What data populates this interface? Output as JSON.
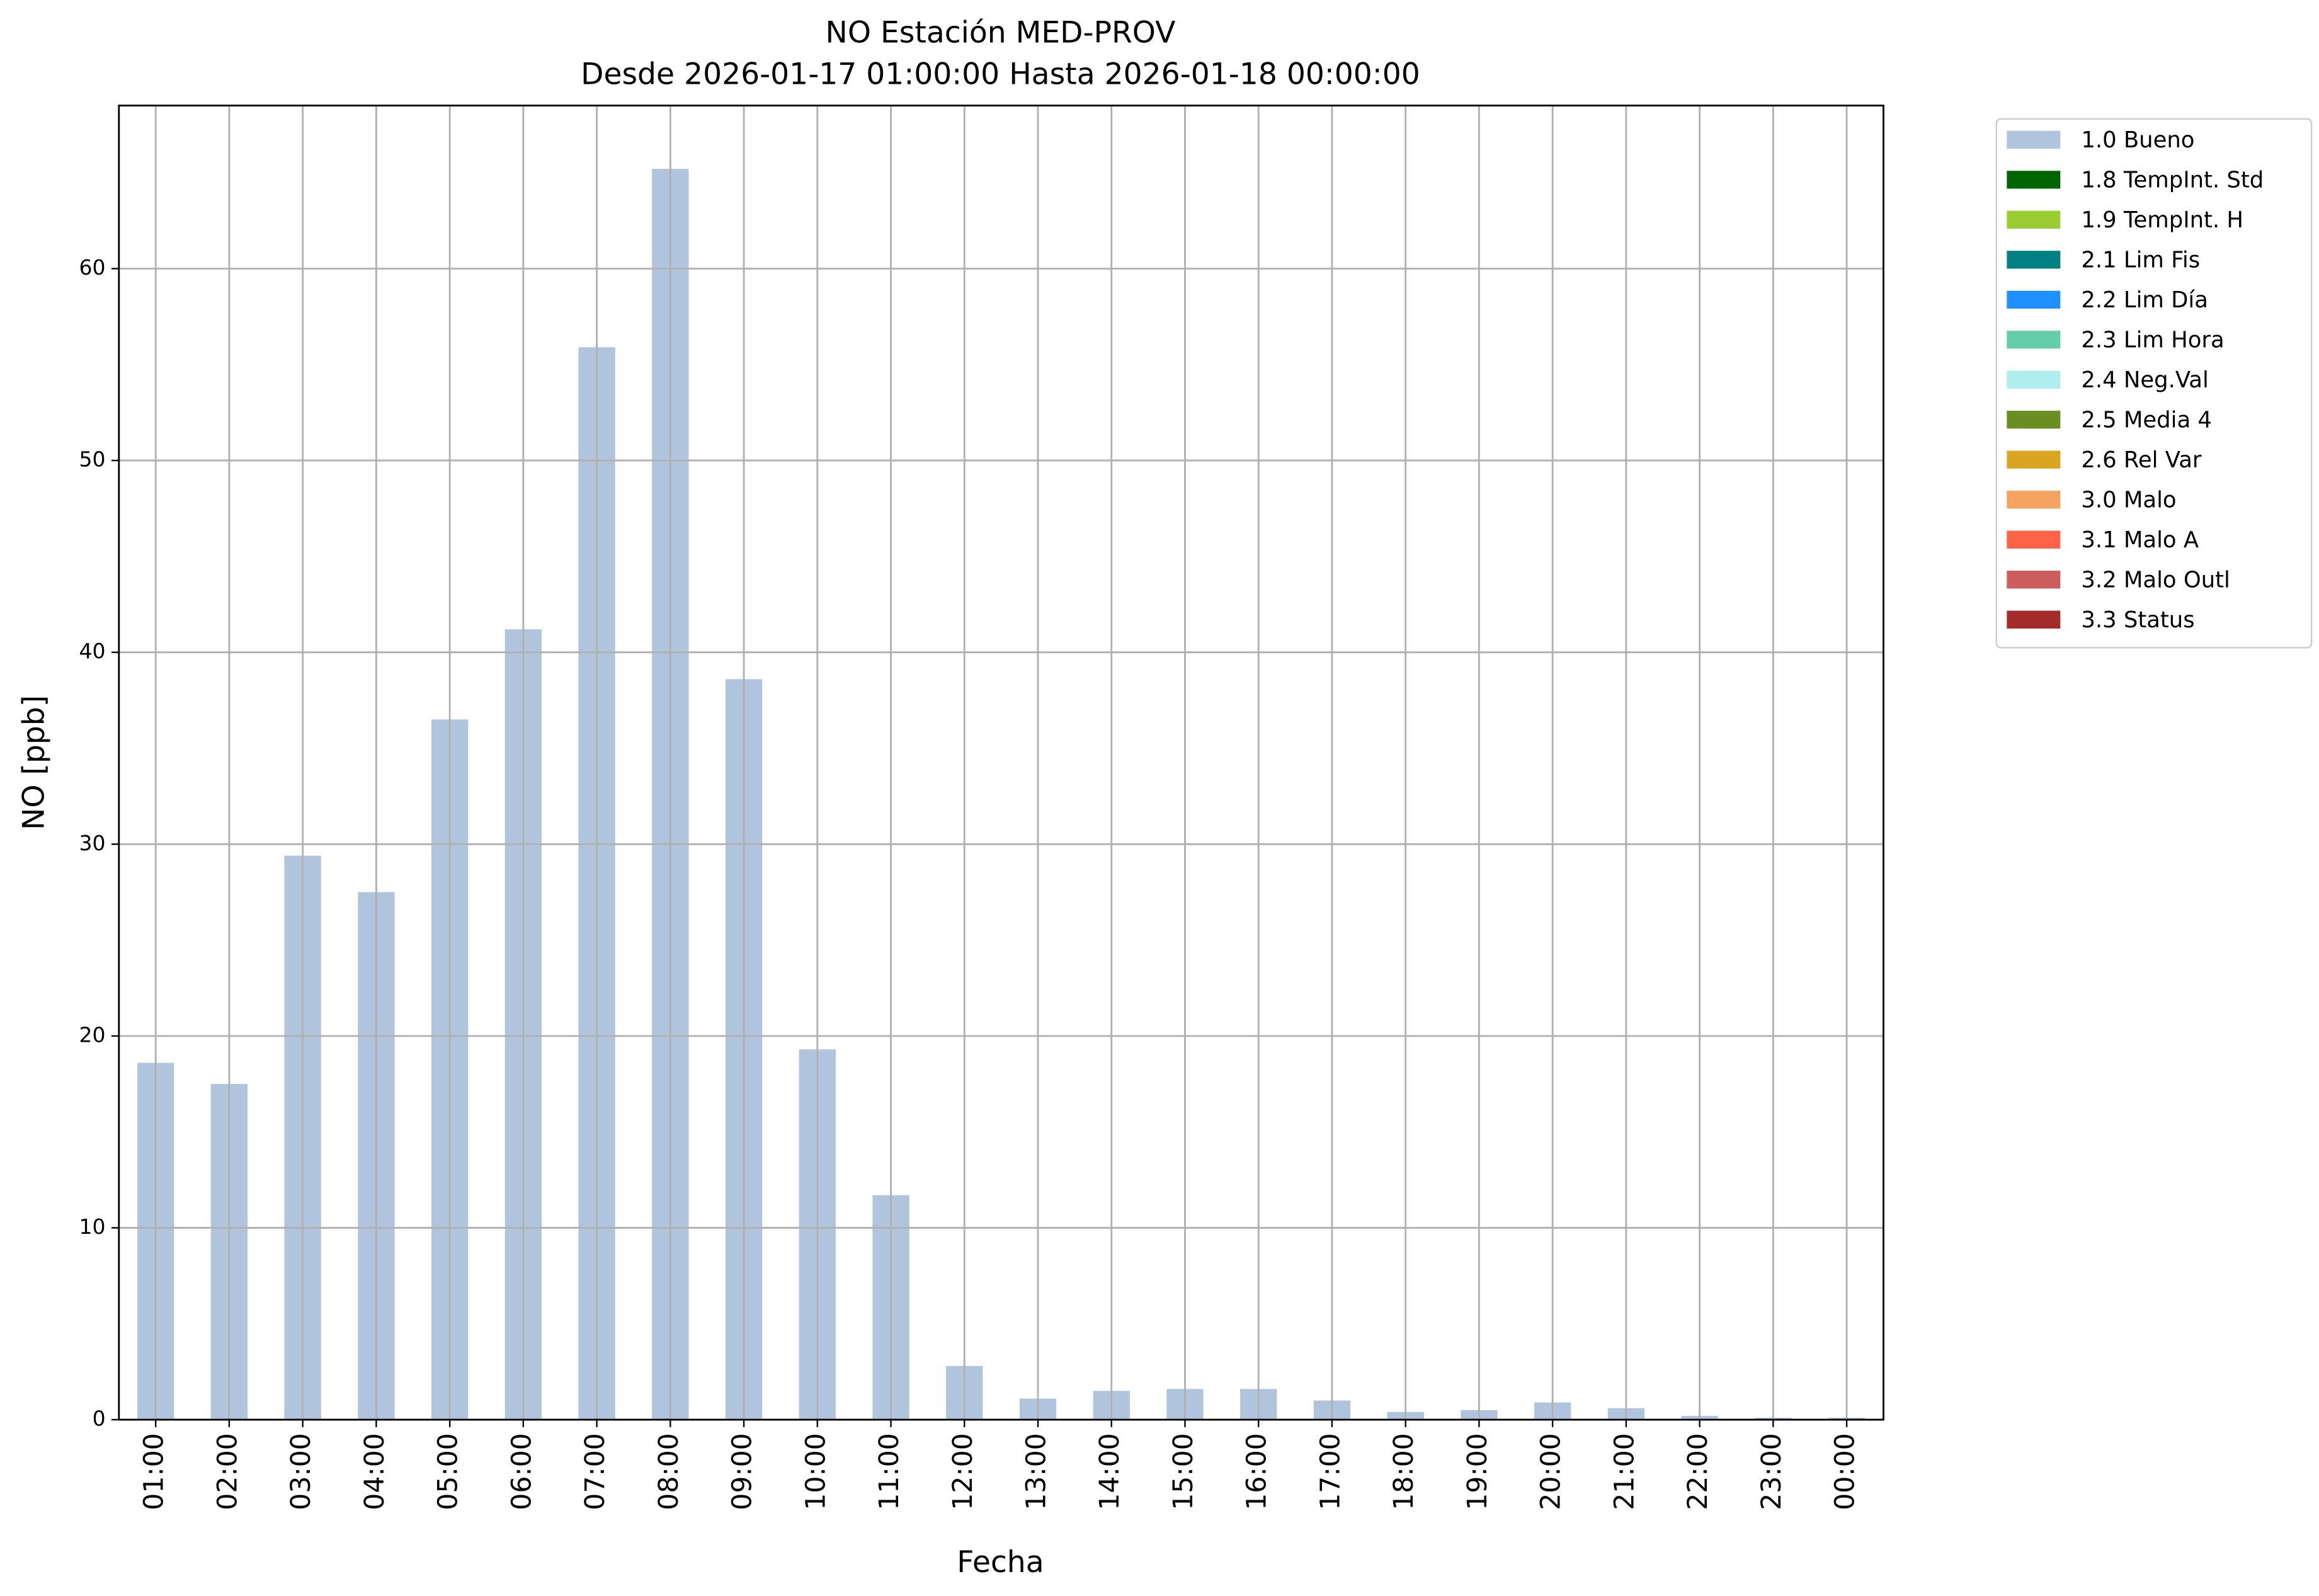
{
  "chart_data": {
    "type": "bar",
    "title": "NO Estación MED-PROV",
    "subtitle": "Desde 2026-01-17 01:00:00 Hasta 2026-01-18 00:00:00",
    "x_label": "Fecha",
    "y_label": "NO [ppb]",
    "categories": [
      "01:00",
      "02:00",
      "03:00",
      "04:00",
      "05:00",
      "06:00",
      "07:00",
      "08:00",
      "09:00",
      "10:00",
      "11:00",
      "12:00",
      "13:00",
      "14:00",
      "15:00",
      "16:00",
      "17:00",
      "18:00",
      "19:00",
      "20:00",
      "21:00",
      "22:00",
      "23:00",
      "00:00"
    ],
    "series": [
      {
        "name": "1.0 Bueno",
        "color": "#b0c4de",
        "values": [
          18.6,
          17.5,
          29.4,
          27.5,
          36.5,
          41.2,
          55.9,
          65.2,
          38.6,
          19.3,
          11.7,
          2.8,
          1.1,
          1.5,
          1.6,
          1.6,
          1.0,
          0.4,
          0.5,
          0.9,
          0.6,
          0.2,
          0.1,
          0.1
        ]
      },
      {
        "name": "1.8 TempInt. Std",
        "color": "#006400"
      },
      {
        "name": "1.9 TempInt. H",
        "color": "#9acd32"
      },
      {
        "name": "2.1 Lim Fis",
        "color": "#008080"
      },
      {
        "name": "2.2 Lim Día",
        "color": "#1e90ff"
      },
      {
        "name": "2.3 Lim Hora",
        "color": "#66cdaa"
      },
      {
        "name": "2.4 Neg.Val",
        "color": "#afeeee"
      },
      {
        "name": "2.5 Media 4",
        "color": "#6b8e23"
      },
      {
        "name": "2.6 Rel Var",
        "color": "#daa520"
      },
      {
        "name": "3.0 Malo",
        "color": "#f4a460"
      },
      {
        "name": "3.1 Malo A",
        "color": "#ff6347"
      },
      {
        "name": "3.2 Malo Outl",
        "color": "#cd5c5c"
      },
      {
        "name": "3.3 Status",
        "color": "#a52a2a"
      }
    ],
    "ylim": [
      0,
      68.5
    ],
    "yticks": [
      0,
      10,
      20,
      30,
      40,
      50,
      60
    ],
    "grid": true,
    "legend": "outside-upper-right"
  }
}
